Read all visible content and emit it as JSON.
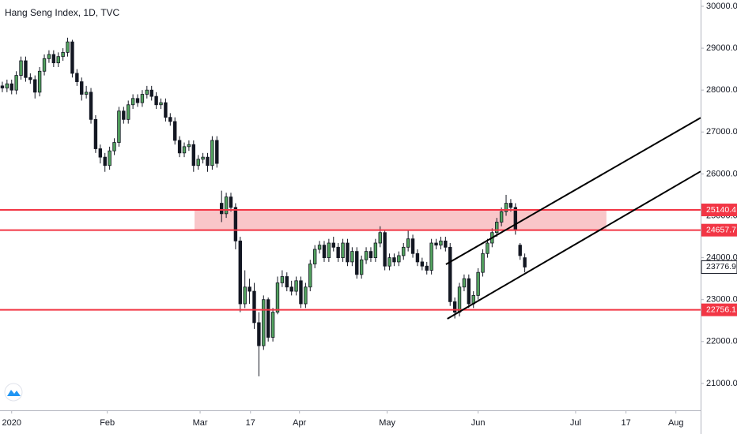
{
  "chart_data": {
    "type": "candlestick",
    "title": "Hang Seng Index, 1D, TVC",
    "up_color": "#53a35f",
    "down_color": "#131722",
    "x": [
      0,
      1,
      2,
      3,
      4,
      5,
      6,
      7,
      8,
      9,
      10,
      11,
      12,
      13,
      14,
      15,
      16,
      17,
      18,
      19,
      20,
      21,
      22,
      23,
      24,
      25,
      26,
      27,
      28,
      29,
      30,
      31,
      32,
      33,
      34,
      35,
      36,
      37,
      38,
      39,
      40,
      41,
      42,
      43,
      44,
      45,
      46,
      47,
      48,
      49,
      50,
      51,
      52,
      53,
      54,
      55,
      56,
      57,
      58,
      59,
      60,
      61,
      62,
      63,
      64,
      65,
      66,
      67,
      68,
      69,
      70,
      71,
      72,
      73,
      74,
      75,
      76,
      77,
      78,
      79,
      80,
      81,
      82,
      83,
      84,
      85,
      86,
      87,
      88,
      89,
      90,
      91,
      92,
      93,
      94,
      95,
      96,
      97,
      98,
      99,
      100,
      101,
      102,
      103,
      104,
      105,
      106,
      107,
      108,
      109,
      110,
      111,
      112
    ],
    "open": [
      28100,
      28050,
      28150,
      28000,
      28350,
      28700,
      28300,
      28250,
      27950,
      28450,
      28750,
      28850,
      28650,
      28800,
      28900,
      29150,
      28400,
      28200,
      27900,
      27950,
      27300,
      26600,
      26400,
      26200,
      26550,
      26750,
      27500,
      27300,
      27650,
      27800,
      27700,
      27900,
      28000,
      27850,
      27650,
      27700,
      27350,
      27250,
      26800,
      26500,
      26650,
      26700,
      26200,
      26350,
      26400,
      26200,
      26800,
      25300,
      25050,
      25450,
      25200,
      24400,
      22900,
      23300,
      23200,
      22450,
      21900,
      23000,
      22100,
      22700,
      23400,
      23550,
      23300,
      23200,
      23450,
      22900,
      23300,
      23850,
      24200,
      24300,
      24000,
      24350,
      24250,
      24000,
      24350,
      23900,
      24150,
      23600,
      23950,
      24150,
      24000,
      24350,
      24600,
      23800,
      24000,
      23900,
      24050,
      24250,
      24450,
      24100,
      23900,
      23800,
      23700,
      24350,
      24300,
      24400,
      24250,
      22950,
      22700,
      23300,
      23500,
      22900,
      23100,
      23650,
      24100,
      24350,
      24600,
      24850,
      25100,
      25300,
      25200,
      24300,
      24000
    ],
    "high": [
      28200,
      28250,
      28250,
      28450,
      28800,
      28800,
      28400,
      28350,
      28550,
      28850,
      28950,
      28950,
      28900,
      29000,
      29250,
      29200,
      28500,
      28300,
      28100,
      28050,
      27400,
      26700,
      26500,
      26650,
      26850,
      27600,
      27600,
      27750,
      27900,
      27900,
      28000,
      28100,
      28100,
      27950,
      27800,
      27800,
      27450,
      27350,
      26900,
      26750,
      26800,
      26800,
      26450,
      26500,
      26500,
      26900,
      26900,
      25600,
      25550,
      25550,
      25300,
      24500,
      23700,
      23500,
      23400,
      22700,
      23100,
      23050,
      22800,
      23550,
      23700,
      23650,
      23450,
      23550,
      23550,
      23400,
      23950,
      24300,
      24400,
      24400,
      24450,
      24500,
      24350,
      24450,
      24450,
      24250,
      24250,
      24050,
      24250,
      24250,
      24450,
      24750,
      24650,
      24100,
      24100,
      24150,
      24350,
      24650,
      24550,
      24200,
      24000,
      23900,
      24450,
      24450,
      24500,
      24500,
      24350,
      23050,
      23400,
      23600,
      23600,
      23200,
      23750,
      24200,
      24450,
      24700,
      24950,
      25200,
      25500,
      25400,
      25300,
      24350,
      24100
    ],
    "low": [
      27950,
      27950,
      27900,
      27900,
      28250,
      28200,
      28150,
      27800,
      27850,
      28350,
      28650,
      28550,
      28550,
      28700,
      28800,
      28300,
      28100,
      27750,
      27800,
      27200,
      26500,
      26250,
      26050,
      26100,
      26450,
      26650,
      27200,
      27200,
      27550,
      27600,
      27600,
      27800,
      27750,
      27550,
      27550,
      27250,
      27150,
      26700,
      26400,
      26400,
      26550,
      26050,
      26100,
      26250,
      26050,
      26100,
      26150,
      24850,
      24950,
      25100,
      24200,
      22700,
      22800,
      22900,
      22300,
      21170,
      21800,
      22000,
      22000,
      22650,
      23300,
      23200,
      23100,
      23100,
      22800,
      22800,
      23200,
      23750,
      24100,
      23900,
      23900,
      24150,
      23900,
      23900,
      23800,
      23800,
      23500,
      23500,
      23850,
      23900,
      23900,
      24250,
      23700,
      23700,
      23800,
      23800,
      23950,
      24150,
      24000,
      23800,
      23700,
      23600,
      23600,
      24200,
      24200,
      24150,
      22850,
      22550,
      22600,
      23200,
      22800,
      22800,
      23000,
      23550,
      24000,
      24250,
      24500,
      24750,
      25000,
      25100,
      24550,
      23950,
      23650
    ],
    "close": [
      28050,
      28150,
      28000,
      28350,
      28700,
      28300,
      28250,
      27950,
      28450,
      28750,
      28850,
      28650,
      28800,
      28900,
      29150,
      28400,
      28200,
      27900,
      27950,
      27300,
      26600,
      26400,
      26200,
      26550,
      26750,
      27500,
      27300,
      27650,
      27800,
      27700,
      27900,
      28000,
      27850,
      27650,
      27700,
      27350,
      27250,
      26800,
      26500,
      26650,
      26700,
      26200,
      26350,
      26400,
      26200,
      26800,
      26250,
      25050,
      25450,
      25200,
      24400,
      22900,
      23300,
      23200,
      22450,
      21900,
      23000,
      22100,
      22700,
      23400,
      23550,
      23300,
      23200,
      23450,
      22900,
      23300,
      23850,
      24200,
      24300,
      24000,
      24350,
      24250,
      24000,
      24350,
      23900,
      24150,
      23600,
      23950,
      24150,
      24000,
      24350,
      24600,
      23800,
      24000,
      23900,
      24050,
      24250,
      24450,
      24100,
      23900,
      23800,
      23700,
      24350,
      24300,
      24400,
      24250,
      22950,
      22700,
      23300,
      23500,
      22900,
      23100,
      23650,
      24100,
      24350,
      24600,
      24850,
      25100,
      25300,
      25200,
      24650,
      24050,
      23776.9
    ],
    "xlim": [
      -0.5,
      149.7
    ],
    "xticks": [
      {
        "value": 2,
        "label": "2020"
      },
      {
        "value": 22.5,
        "label": "Feb"
      },
      {
        "value": 42.4,
        "label": "Mar"
      },
      {
        "value": 53.2,
        "label": "17"
      },
      {
        "value": 63.7,
        "label": "Apr"
      },
      {
        "value": 82.5,
        "label": "May"
      },
      {
        "value": 102,
        "label": "Jun"
      },
      {
        "value": 122.9,
        "label": "Jul"
      },
      {
        "value": 133.7,
        "label": "17"
      },
      {
        "value": 144.4,
        "label": "Aug"
      }
    ],
    "ylim": [
      20358,
      30150
    ],
    "yticks": [
      {
        "value": 21000,
        "label": "21000.0"
      },
      {
        "value": 22000,
        "label": "22000.0"
      },
      {
        "value": 23000,
        "label": "23000.0"
      },
      {
        "value": 24000,
        "label": "24000.0"
      },
      {
        "value": 25000,
        "label": "25000.0"
      },
      {
        "value": 26000,
        "label": "26000.0"
      },
      {
        "value": 27000,
        "label": "27000.0"
      },
      {
        "value": 28000,
        "label": "28000.0"
      },
      {
        "value": 29000,
        "label": "29000.0"
      },
      {
        "value": 30000,
        "label": "30000.0"
      }
    ],
    "levels": [
      {
        "value": 25140.4,
        "color": "#f23645"
      },
      {
        "value": 24657.7,
        "color": "#f23645"
      },
      {
        "value": 22756.1,
        "color": "#f23645"
      }
    ],
    "zone": {
      "x": [
        41.2,
        129.5
      ],
      "color": "#f8bcc0"
    },
    "trendlines": [
      {
        "x": [
          95.1,
          149.7
        ],
        "y": [
          23842,
          27340
        ],
        "color": "#000000"
      },
      {
        "x": [
          95.4,
          149.7
        ],
        "y": [
          22542,
          26060
        ],
        "color": "#000000"
      }
    ]
  }
}
